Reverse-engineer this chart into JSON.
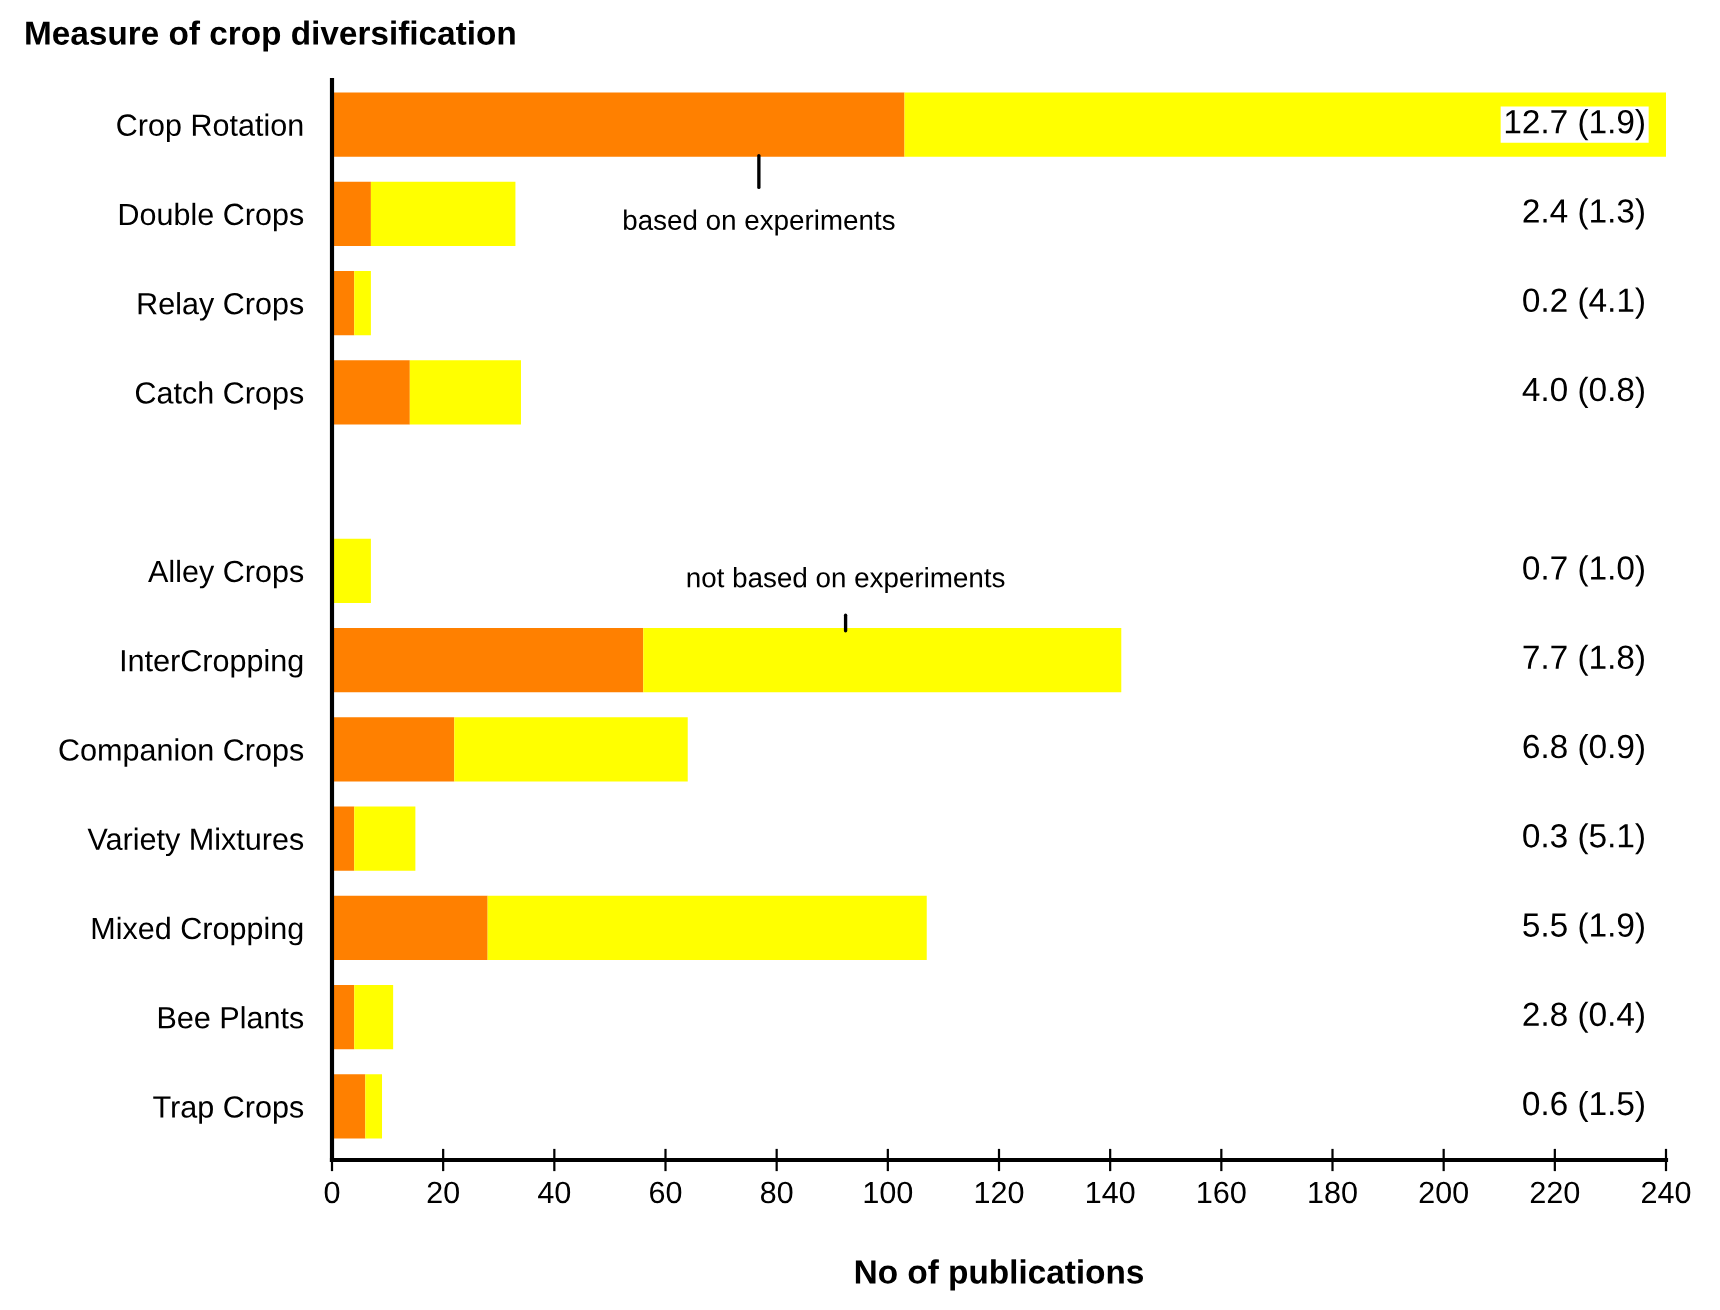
{
  "chart_data": {
    "type": "bar",
    "orientation": "horizontal",
    "stacked": true,
    "title": "Measure of crop diversification",
    "xlabel": "No of publications",
    "categories": [
      "Crop Rotation",
      "Double Crops",
      "Relay Crops",
      "Catch Crops",
      null,
      "Alley Crops",
      "InterCropping",
      "Companion Crops",
      "Variety Mixtures",
      "Mixed Cropping",
      "Bee Plants",
      "Trap Crops"
    ],
    "series": [
      {
        "color": "#ff8000",
        "values": [
          103,
          7,
          4,
          14,
          null,
          0,
          56,
          22,
          4,
          28,
          4,
          6
        ]
      },
      {
        "color": "#ffff00",
        "values": [
          137,
          26,
          3,
          20,
          null,
          7,
          86,
          42,
          11,
          79,
          7,
          3
        ]
      }
    ],
    "xlim": [
      0,
      240
    ],
    "xticks": [
      0,
      20,
      40,
      60,
      80,
      100,
      120,
      140,
      160,
      180,
      200,
      220,
      240
    ],
    "annotations": [
      "based on experiments",
      "not based on experiments",
      "12.7 (1.9)",
      "2.4 (1.3)",
      "0.2 (4.1)",
      "4.0 (0.8)",
      "0.7 (1.0)",
      "7.7 (1.8)",
      "6.8 (0.9)",
      "0.3 (5.1)",
      "5.5 (1.9)",
      "2.8 (0.4)",
      "0.6 (1.5)"
    ]
  }
}
